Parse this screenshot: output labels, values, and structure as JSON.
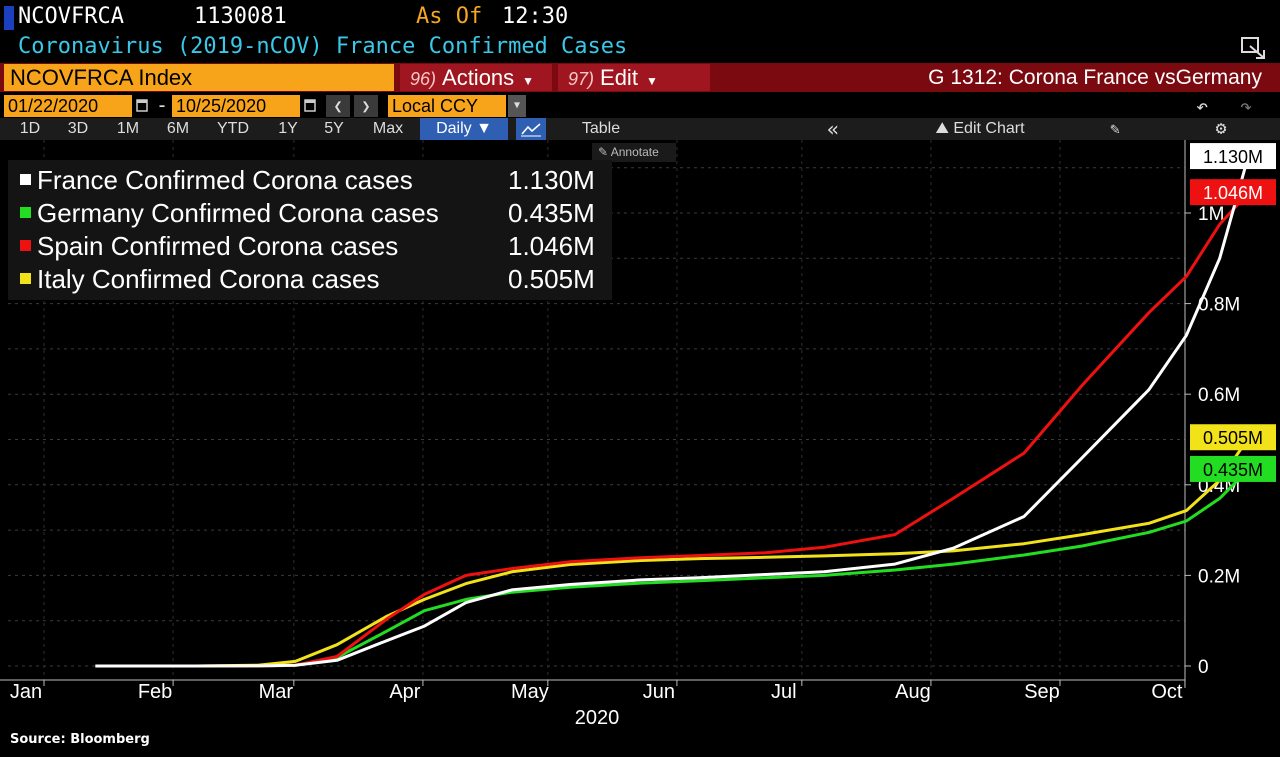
{
  "header": {
    "ticker": "NCOVFRCA",
    "value": "1130081",
    "as_of_label": "As Of",
    "time": "12:30",
    "subtitle": "Coronavirus (2019-nCOV) France Confirmed Cases"
  },
  "command_bar": {
    "index_field": "NCOVFRCA Index",
    "actions_num": "96)",
    "actions_label": "Actions",
    "edit_num": "97)",
    "edit_label": "Edit",
    "graph_title": "G 1312: Corona France vsGermany"
  },
  "date_range": {
    "from": "01/22/2020",
    "separator": "-",
    "to": "10/25/2020",
    "currency": "Local CCY"
  },
  "toolbar": {
    "periods": [
      "1D",
      "3D",
      "1M",
      "6M",
      "YTD",
      "1Y",
      "5Y",
      "Max"
    ],
    "frequency": "Daily ▼",
    "table_label": "Table",
    "edit_chart_label": "Edit Chart",
    "annotate_label": "Annotate"
  },
  "icons": {
    "expand": "expand-icon",
    "calendar": "calendar-icon",
    "prev": "chevron-left-icon",
    "next": "chevron-right-icon",
    "dropdown": "chevron-down-icon",
    "undo": "undo-icon",
    "redo": "redo-icon",
    "line_chart": "line-chart-icon",
    "collapse": "double-chevron-left-icon",
    "edit_chart": "chart-edit-icon",
    "pencil": "pencil-icon",
    "gear": "gear-icon"
  },
  "colors": {
    "background": "#000000",
    "accent_orange": "#f8a41a",
    "subtitle_cyan": "#39c8e8",
    "bar_red": "#7a0a10",
    "france": "#ffffff",
    "germany": "#22dd22",
    "spain": "#ee1111",
    "italy": "#f2e21a"
  },
  "source": "Source: Bloomberg",
  "chart_data": {
    "type": "line",
    "title": "Coronavirus (2019-nCOV) France Confirmed Cases",
    "xlabel": "2020",
    "ylabel": "",
    "x_tick_labels": [
      "Jan",
      "Feb",
      "Mar",
      "Apr",
      "May",
      "Jun",
      "Jul",
      "Aug",
      "Sep",
      "Oct"
    ],
    "x_year_label": "2020",
    "y_tick_labels": [
      "0",
      "0.2M",
      "0.4M",
      "0.6M",
      "0.8M",
      "1M"
    ],
    "y_ticks": [
      0,
      200000,
      400000,
      600000,
      800000,
      1000000
    ],
    "ylim": [
      0,
      1130000
    ],
    "xlim": [
      "2020-01-01",
      "2020-10-25"
    ],
    "grid": true,
    "legend_position": "top-left",
    "x": [
      "2020-01-22",
      "2020-02-01",
      "2020-02-15",
      "2020-03-01",
      "2020-03-10",
      "2020-03-20",
      "2020-04-01",
      "2020-04-10",
      "2020-04-20",
      "2020-05-01",
      "2020-05-15",
      "2020-06-01",
      "2020-06-15",
      "2020-07-01",
      "2020-07-15",
      "2020-08-01",
      "2020-08-15",
      "2020-09-01",
      "2020-09-15",
      "2020-10-01",
      "2020-10-10",
      "2020-10-18",
      "2020-10-25"
    ],
    "series": [
      {
        "name": "France Confirmed Corona cases",
        "color": "#ffffff",
        "last": "1.130M",
        "values": [
          0,
          6,
          12,
          130,
          1800,
          12600,
          56000,
          88000,
          140000,
          168000,
          180000,
          190000,
          195000,
          202000,
          208000,
          225000,
          260000,
          330000,
          460000,
          610000,
          730000,
          900000,
          1130081
        ]
      },
      {
        "name": "Germany Confirmed Corona cases",
        "color": "#22dd22",
        "last": "0.435M",
        "values": [
          0,
          8,
          16,
          130,
          1400,
          19000,
          77000,
          122000,
          147000,
          163000,
          174000,
          183000,
          188000,
          195000,
          200000,
          212000,
          225000,
          245000,
          265000,
          295000,
          320000,
          370000,
          435000
        ]
      },
      {
        "name": "Spain Confirmed Corona cases",
        "color": "#ee1111",
        "last": "1.046M",
        "values": [
          0,
          1,
          2,
          85,
          1700,
          21000,
          104000,
          158000,
          200000,
          215000,
          230000,
          239000,
          244000,
          250000,
          262000,
          290000,
          370000,
          470000,
          620000,
          780000,
          860000,
          975000,
          1046000
        ]
      },
      {
        "name": "Italy Confirmed Corona cases",
        "color": "#f2e21a",
        "last": "0.505M",
        "values": [
          0,
          2,
          3,
          1700,
          10100,
          47000,
          110000,
          147000,
          182000,
          208000,
          224000,
          233000,
          237000,
          240000,
          243000,
          248000,
          254000,
          270000,
          290000,
          315000,
          343000,
          410000,
          505000
        ]
      }
    ]
  }
}
